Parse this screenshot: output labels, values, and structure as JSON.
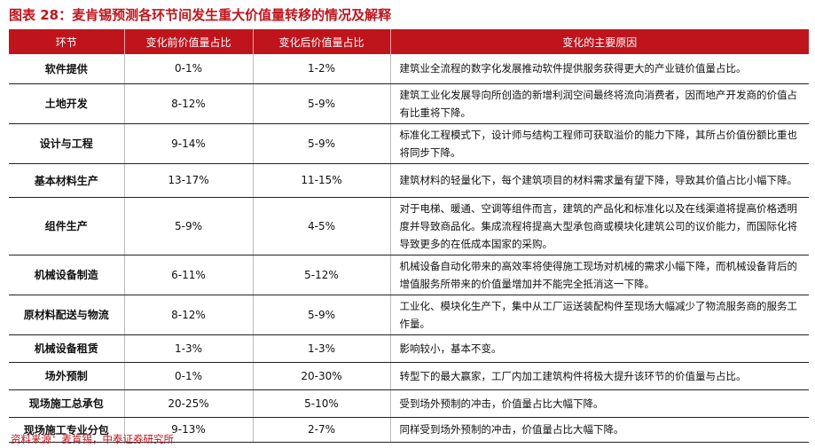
{
  "title": "图表 28：麦肯锡预测各环节间发生重大价值量转移的情况及解释",
  "table": {
    "header": [
      "环节",
      "变化前价值量占比",
      "变化后价值量占比",
      "变化的主要原因"
    ],
    "rows": [
      [
        "软件提供",
        "0-1%",
        "1-2%",
        "建筑业全流程的数字化发展推动软件提供服务获得更大的产业链价值量占比。"
      ],
      [
        "土地开发",
        "8-12%",
        "5-9%",
        "建筑工业化发展导向所创造的新增利润空间最终将流向消费者，因而地产开发商的价值占有比重将下降。"
      ],
      [
        "设计与工程",
        "9-14%",
        "5-9%",
        "标准化工程模式下，设计师与结构工程师可获取溢价的能力下降，其所占价值份额比重也将同步下降。"
      ],
      [
        "基本材料生产",
        "13-17%",
        "11-15%",
        "建筑材料的轻量化下，每个建筑项目的材料需求量有望下降，导致其价值占比小幅下降。"
      ],
      [
        "组件生产",
        "5-9%",
        "4-5%",
        "对于电梯、暖通、空调等组件而言，建筑的产品化和标准化以及在线渠道将提高价格透明度并导致商品化。集成流程将提高大型承包商或模块化建筑公司的议价能力，而国际化将导致更多的在低成本国家的采购。"
      ],
      [
        "机械设备制造",
        "6-11%",
        "5-12%",
        "机械设备自动化带来的高效率将使得施工现场对机械的需求小幅下降，而机械设备背后的增值服务所带来的价值量增加并不能完全抵消这一下降。"
      ],
      [
        "原材料配送与物流",
        "8-12%",
        "5-9%",
        "工业化、模块化生产下，集中从工厂运送装配构件至现场大幅减少了物流服务商的服务工作量。"
      ],
      [
        "机械设备租赁",
        "1-3%",
        "1-3%",
        "影响较小，基本不变。"
      ],
      [
        "场外预制",
        "0-1%",
        "20-30%",
        "转型下的最大赢家，工厂内加工建筑构件将极大提升该环节的价值量与占比。"
      ],
      [
        "现场施工总承包",
        "20-25%",
        "5-10%",
        "受到场外预制的冲击，价值量占比大幅下降。"
      ],
      [
        "现场施工专业分包",
        "9-13%",
        "2-7%",
        "同样受到场外预制的冲击，价值量占比大幅下降。"
      ]
    ]
  },
  "source": "资料来源：麦肯锡，中泰证券研究所"
}
